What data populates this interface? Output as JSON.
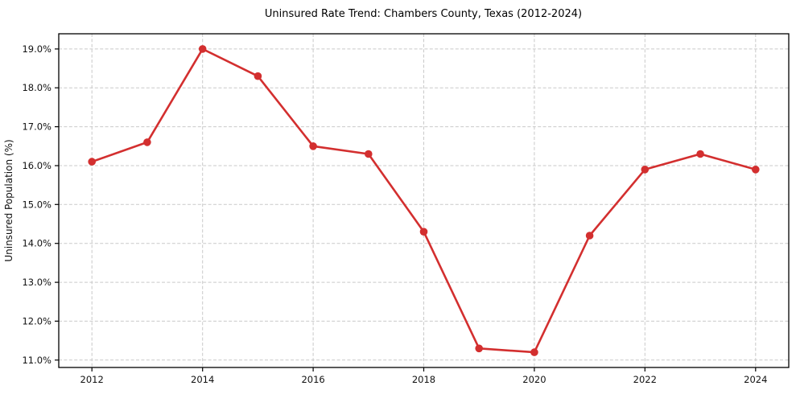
{
  "chart_data": {
    "type": "line",
    "title": "Uninsured Rate Trend: Chambers County, Texas (2012-2024)",
    "xlabel": "",
    "ylabel": "Uninsured Population (%)",
    "x": [
      2012,
      2013,
      2014,
      2015,
      2016,
      2017,
      2018,
      2019,
      2020,
      2021,
      2022,
      2023,
      2024
    ],
    "values": [
      16.1,
      16.6,
      19.0,
      18.3,
      16.5,
      16.3,
      14.3,
      11.3,
      11.2,
      14.2,
      15.9,
      16.3,
      15.9
    ],
    "x_ticks": [
      2012,
      2014,
      2016,
      2018,
      2020,
      2022,
      2024
    ],
    "x_tick_labels": [
      "2012",
      "2014",
      "2016",
      "2018",
      "2020",
      "2022",
      "2024"
    ],
    "y_ticks": [
      11,
      12,
      13,
      14,
      15,
      16,
      17,
      18,
      19
    ],
    "y_tick_labels": [
      "11.0%",
      "12.0%",
      "13.0%",
      "14.0%",
      "15.0%",
      "16.0%",
      "17.0%",
      "18.0%",
      "19.0%"
    ],
    "xlim": [
      2011.4,
      2024.6
    ],
    "ylim": [
      10.81,
      19.39
    ],
    "grid": true,
    "legend": null,
    "line_color": "#d32f2f",
    "marker": "o"
  },
  "styles": {
    "background": "#ffffff",
    "grid_color": "#c9c9c9",
    "axis_color": "#000000",
    "tick_text_color": "#111111"
  }
}
